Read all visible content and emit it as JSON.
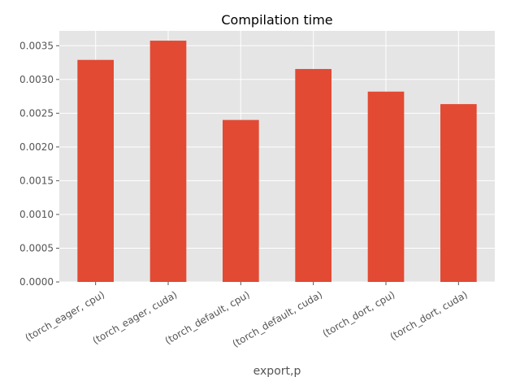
{
  "chart_data": {
    "type": "bar",
    "title": "Compilation time",
    "xlabel": "export,p",
    "ylabel": "",
    "categories": [
      "(torch_eager, cpu)",
      "(torch_eager, cuda)",
      "(torch_default, cpu)",
      "(torch_default, cuda)",
      "(torch_dort, cpu)",
      "(torch_dort, cuda)"
    ],
    "values": [
      0.00329,
      0.003575,
      0.0024,
      0.003155,
      0.00282,
      0.002635
    ],
    "ylim": [
      0,
      0.00372
    ],
    "yticks": [
      0,
      0.0005,
      0.001,
      0.0015,
      0.002,
      0.0025,
      0.003,
      0.0035
    ],
    "ytick_labels": [
      "0.0000",
      "0.0005",
      "0.0010",
      "0.0015",
      "0.0020",
      "0.0025",
      "0.0030",
      "0.0035"
    ],
    "grid": true,
    "bar_color": "#E24A33",
    "plot_background": "#E5E5E5",
    "grid_color": "#FFFFFF"
  }
}
